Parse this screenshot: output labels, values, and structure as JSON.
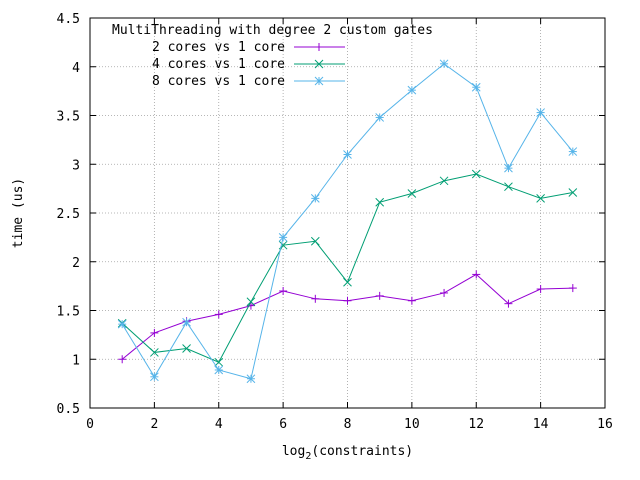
{
  "chart_data": {
    "type": "line",
    "legend_title": "MultiThreading with degree 2 custom gates",
    "legend_position": "top-left",
    "xlabel": "log",
    "xlabel_sub": "2",
    "xlabel_rest": "(constraints)",
    "ylabel": "time (us)",
    "xlim": [
      0,
      16
    ],
    "ylim": [
      0.5,
      4.5
    ],
    "xticks": [
      0,
      2,
      4,
      6,
      8,
      10,
      12,
      14,
      16
    ],
    "yticks": [
      0.5,
      1,
      1.5,
      2,
      2.5,
      3,
      3.5,
      4,
      4.5
    ],
    "xtick_labels": [
      "0",
      "2",
      "4",
      "6",
      "8",
      "10",
      "12",
      "14",
      "16"
    ],
    "ytick_labels": [
      "0.5",
      "1",
      "1.5",
      "2",
      "2.5",
      "3",
      "3.5",
      "4",
      "4.5"
    ],
    "grid": true,
    "x": [
      1,
      2,
      3,
      4,
      5,
      6,
      7,
      8,
      9,
      10,
      11,
      12,
      13,
      14,
      15
    ],
    "series": [
      {
        "name": "2 cores vs 1 core",
        "color": "#9400d3",
        "marker": "plus",
        "values": [
          1.0,
          1.27,
          1.39,
          1.46,
          1.55,
          1.7,
          1.62,
          1.6,
          1.65,
          1.6,
          1.68,
          1.87,
          1.57,
          1.72,
          1.73
        ]
      },
      {
        "name": "4 cores vs 1 core",
        "color": "#009e73",
        "marker": "cross",
        "values": [
          1.37,
          1.07,
          1.11,
          0.97,
          1.59,
          2.17,
          2.21,
          1.79,
          2.61,
          2.7,
          2.83,
          2.9,
          2.77,
          2.65,
          2.71
        ]
      },
      {
        "name": "8 cores vs 1 core",
        "color": "#56b4e9",
        "marker": "star",
        "values": [
          1.36,
          0.82,
          1.38,
          0.89,
          0.8,
          2.25,
          2.65,
          3.1,
          3.48,
          3.76,
          4.03,
          3.79,
          2.96,
          3.53,
          3.13
        ]
      }
    ]
  }
}
